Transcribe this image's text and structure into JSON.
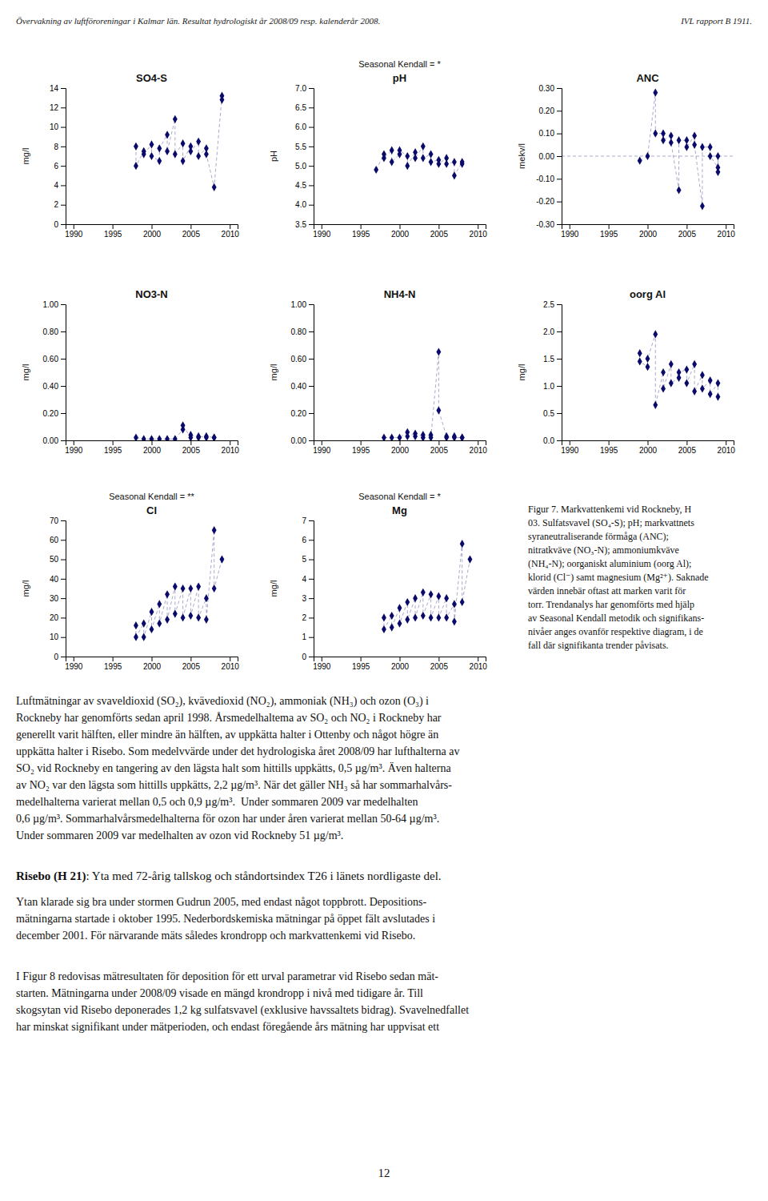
{
  "header_left": "Övervakning av luftföroreningar i Kalmar län. Resultat hydrologiskt år 2008/09 resp. kalenderår 2008.",
  "header_right": "IVL rapport B 1911.",
  "chart_data": [
    {
      "type": "line",
      "marker": "diamond",
      "line_style": "dashed",
      "color": "#0a0a6a",
      "title": "SO4-S",
      "ylabel": "mg/l",
      "xlim": [
        1989,
        2011
      ],
      "xticks": [
        1990,
        1995,
        2000,
        2005,
        2010
      ],
      "ylim": [
        0,
        14
      ],
      "yticks": [
        0,
        2,
        4,
        6,
        8,
        10,
        12,
        14
      ],
      "x": [
        1998,
        1998,
        1999,
        1999,
        2000,
        2000,
        2001,
        2001,
        2002,
        2002,
        2003,
        2003,
        2004,
        2004,
        2005,
        2005,
        2006,
        2006,
        2007,
        2007,
        2008,
        2009,
        2009
      ],
      "values": [
        8.0,
        6.0,
        7.5,
        7.2,
        8.2,
        7.0,
        6.5,
        7.8,
        9.2,
        7.5,
        10.8,
        7.2,
        8.3,
        6.5,
        8.0,
        7.5,
        8.5,
        7.0,
        7.8,
        7.2,
        3.8,
        13.2,
        12.8
      ]
    },
    {
      "type": "line",
      "marker": "diamond",
      "line_style": "dashed",
      "color": "#0a0a6a",
      "title": "pH",
      "subtitle": "Seasonal Kendall = *",
      "ylabel": "pH",
      "xlim": [
        1989,
        2011
      ],
      "xticks": [
        1990,
        1995,
        2000,
        2005,
        2010
      ],
      "ylim": [
        3.5,
        7.0
      ],
      "yticks": [
        3.5,
        {
          "value": 4.0,
          "label": "4.0"
        },
        4.5,
        {
          "value": 5.0,
          "label": "5.0"
        },
        5.5,
        {
          "value": 6.0,
          "label": "6.0"
        },
        6.5,
        {
          "value": 7.0,
          "label": "7.0"
        }
      ],
      "x": [
        1997,
        1998,
        1998,
        1999,
        1999,
        2000,
        2000,
        2001,
        2001,
        2002,
        2002,
        2003,
        2003,
        2004,
        2004,
        2005,
        2005,
        2006,
        2006,
        2007,
        2007,
        2008,
        2008
      ],
      "values": [
        4.9,
        5.3,
        5.2,
        5.4,
        5.1,
        5.3,
        5.4,
        5.25,
        5.0,
        5.35,
        5.2,
        5.5,
        5.2,
        5.3,
        5.1,
        5.15,
        5.05,
        5.2,
        5.05,
        5.1,
        4.75,
        5.1,
        5.05
      ]
    },
    {
      "type": "line",
      "marker": "diamond",
      "line_style": "dashed",
      "color": "#0a0a6a",
      "title": "ANC",
      "ylabel": "mekv/l",
      "hline": 0.0,
      "xlim": [
        1989,
        2011
      ],
      "xticks": [
        1990,
        1995,
        2000,
        2005,
        2010
      ],
      "ylim": [
        -0.3,
        0.3
      ],
      "yticks": [
        {
          "value": -0.3,
          "label": "-0.30"
        },
        {
          "value": -0.2,
          "label": "-0.20"
        },
        {
          "value": -0.1,
          "label": "-0.10"
        },
        {
          "value": 0.0,
          "label": "0.00"
        },
        {
          "value": 0.1,
          "label": "0.10"
        },
        {
          "value": 0.2,
          "label": "0.20"
        },
        {
          "value": 0.3,
          "label": "0.30"
        }
      ],
      "x": [
        1999,
        2000,
        2001,
        2001,
        2002,
        2002,
        2003,
        2003,
        2004,
        2004,
        2005,
        2005,
        2006,
        2006,
        2007,
        2007,
        2008,
        2008,
        2009,
        2009,
        2009
      ],
      "values": [
        -0.02,
        0.0,
        0.28,
        0.1,
        0.1,
        0.07,
        0.09,
        0.06,
        -0.15,
        0.07,
        0.07,
        0.04,
        0.09,
        0.05,
        -0.22,
        0.04,
        0.04,
        0.0,
        -0.05,
        0.0,
        -0.07
      ]
    },
    {
      "type": "line",
      "marker": "diamond",
      "line_style": "dashed",
      "color": "#0a0a6a",
      "title": "NO3-N",
      "ylabel": "mg/l",
      "xlim": [
        1989,
        2011
      ],
      "xticks": [
        1990,
        1995,
        2000,
        2005,
        2010
      ],
      "ylim": [
        0.0,
        1.0
      ],
      "yticks": [
        {
          "value": 0.0,
          "label": "0.00"
        },
        {
          "value": 0.2,
          "label": "0.20"
        },
        {
          "value": 0.4,
          "label": "0.40"
        },
        {
          "value": 0.6,
          "label": "0.60"
        },
        {
          "value": 0.8,
          "label": "0.80"
        },
        {
          "value": 1.0,
          "label": "1.00"
        }
      ],
      "x": [
        1998,
        1999,
        2000,
        2001,
        2002,
        2003,
        2004,
        2004,
        2005,
        2005,
        2006,
        2006,
        2007,
        2007,
        2008,
        2008
      ],
      "values": [
        0.02,
        0.01,
        0.01,
        0.01,
        0.01,
        0.01,
        0.08,
        0.11,
        0.02,
        0.04,
        0.02,
        0.03,
        0.02,
        0.03,
        0.02,
        0.02
      ]
    },
    {
      "type": "line",
      "marker": "diamond",
      "line_style": "dashed",
      "color": "#0a0a6a",
      "title": "NH4-N",
      "ylabel": "mg/l",
      "xlim": [
        1989,
        2011
      ],
      "xticks": [
        1990,
        1995,
        2000,
        2005,
        2010
      ],
      "ylim": [
        0.0,
        1.0
      ],
      "yticks": [
        {
          "value": 0.0,
          "label": "0.00"
        },
        {
          "value": 0.2,
          "label": "0.20"
        },
        {
          "value": 0.4,
          "label": "0.40"
        },
        {
          "value": 0.6,
          "label": "0.60"
        },
        {
          "value": 0.8,
          "label": "0.80"
        },
        {
          "value": 1.0,
          "label": "1.00"
        }
      ],
      "x": [
        1998,
        1999,
        2000,
        2001,
        2001,
        2002,
        2002,
        2003,
        2003,
        2004,
        2004,
        2005,
        2005,
        2006,
        2006,
        2007,
        2007,
        2008,
        2008
      ],
      "values": [
        0.02,
        0.02,
        0.02,
        0.06,
        0.03,
        0.05,
        0.03,
        0.04,
        0.02,
        0.04,
        0.02,
        0.65,
        0.22,
        0.03,
        0.02,
        0.03,
        0.02,
        0.02,
        0.02
      ]
    },
    {
      "type": "line",
      "marker": "diamond",
      "line_style": "dashed",
      "color": "#0a0a6a",
      "title": "oorg Al",
      "ylabel": "mg/l",
      "xlim": [
        1989,
        2011
      ],
      "xticks": [
        1990,
        1995,
        2000,
        2005,
        2010
      ],
      "ylim": [
        0.0,
        2.5
      ],
      "yticks": [
        {
          "value": 0.0,
          "label": "0.0"
        },
        0.5,
        {
          "value": 1.0,
          "label": "1.0"
        },
        1.5,
        {
          "value": 2.0,
          "label": "2.0"
        },
        2.5
      ],
      "x": [
        1999,
        1999,
        2000,
        2000,
        2001,
        2001,
        2002,
        2002,
        2003,
        2003,
        2004,
        2004,
        2005,
        2005,
        2006,
        2006,
        2007,
        2007,
        2008,
        2008,
        2009,
        2009
      ],
      "values": [
        1.6,
        1.45,
        1.35,
        1.5,
        1.95,
        0.65,
        1.25,
        0.95,
        1.4,
        1.05,
        1.15,
        1.25,
        1.3,
        1.05,
        1.4,
        0.9,
        1.2,
        0.95,
        1.1,
        0.85,
        1.05,
        0.8
      ]
    },
    {
      "type": "line",
      "marker": "diamond",
      "line_style": "dashed",
      "color": "#0a0a6a",
      "title": "Cl",
      "subtitle": "Seasonal Kendall = **",
      "ylabel": "mg/l",
      "xlim": [
        1989,
        2011
      ],
      "xticks": [
        1990,
        1995,
        2000,
        2005,
        2010
      ],
      "ylim": [
        0,
        70
      ],
      "yticks": [
        0,
        10,
        20,
        30,
        40,
        50,
        60,
        70
      ],
      "x": [
        1998,
        1998,
        1999,
        1999,
        2000,
        2000,
        2001,
        2001,
        2002,
        2002,
        2003,
        2003,
        2004,
        2004,
        2005,
        2005,
        2006,
        2006,
        2007,
        2007,
        2008,
        2008,
        2009
      ],
      "values": [
        16,
        10,
        17,
        10,
        23,
        14,
        27,
        17,
        32,
        19,
        36,
        22,
        35,
        20,
        35,
        21,
        36,
        20,
        30,
        19,
        65,
        35,
        50
      ]
    },
    {
      "type": "line",
      "marker": "diamond",
      "line_style": "dashed",
      "color": "#0a0a6a",
      "title": "Mg",
      "subtitle": "Seasonal Kendall = *",
      "ylabel": "mg/l",
      "xlim": [
        1989,
        2011
      ],
      "xticks": [
        1990,
        1995,
        2000,
        2005,
        2010
      ],
      "ylim": [
        0,
        7
      ],
      "yticks": [
        0,
        1,
        2,
        3,
        4,
        5,
        6,
        7
      ],
      "x": [
        1998,
        1998,
        1999,
        1999,
        2000,
        2000,
        2001,
        2001,
        2002,
        2002,
        2003,
        2003,
        2004,
        2004,
        2005,
        2005,
        2006,
        2006,
        2007,
        2007,
        2008,
        2008,
        2009
      ],
      "values": [
        2.0,
        1.4,
        2.1,
        1.5,
        2.5,
        1.7,
        2.8,
        1.9,
        3.0,
        2.0,
        3.3,
        2.1,
        3.2,
        2.0,
        3.1,
        2.0,
        3.0,
        2.0,
        2.7,
        1.8,
        5.8,
        2.8,
        5.0
      ]
    }
  ],
  "figure_caption": [
    "Figur 7. Markvattenkemi vid Rockneby, H",
    "03. Sulfatsvavel (SO₄-S); pH; markvattnets",
    "syraneutraliserande förmåga (ANC);",
    "nitratkväve (NO₃-N); ammoniumkväve",
    "(NH₄-N); oorganiskt aluminium (oorg Al);",
    "klorid (Cl⁻) samt magnesium (Mg²⁺). Saknade",
    "värden innebär oftast att marken varit för",
    "torr. Trendanalys har genomförts med hjälp",
    "av Seasonal Kendall metodik och signifikans-",
    "nivåer anges ovanför respektive diagram, i de",
    "fall där signifikanta trender påvisats."
  ],
  "body_para1": [
    "Luftmätningar av svaveldioxid (SO₂), kvävedioxid (NO₂), ammoniak (NH₃) och ozon (O₃) i",
    "Rockneby har genomförts sedan april 1998. Årsmedelhaltema av SO₂ och NO₂ i Rockneby har",
    "generellt varit hälften, eller mindre än hälften, av uppkätta halter i Ottenby och något högre än",
    "uppkätta halter i Risebo. Som medelvvärde under det hydrologiska året 2008/09 har lufthalterna av",
    "SO₂ vid Rockneby en tangering av den lägsta halt som hittills uppkätts, 0,5 µg/m³. Även halterna",
    "av NO₂ var den lägsta som hittills uppkätts, 2,2 µg/m³. När det gäller NH₃ så har sommarhalvårs-",
    "medelhalterna varierat mellan 0,5 och 0,9 µg/m³.  Under sommaren 2009 var medelhalten",
    "0,6 µg/m³. Sommarhalvårsmedelhalterna för ozon har under åren varierat mellan 50-64 µg/m³.",
    "Under sommaren 2009 var medelhalten av ozon vid Rockneby 51 µg/m³."
  ],
  "heading_bold": "Risebo (H 21)",
  "heading_rest": ": Yta med 72-årig tallskog och ståndortsindex T26 i länets nordligaste del.",
  "body_para2": [
    "Ytan klarade sig bra under stormen Gudrun 2005, med endast något toppbrott. Depositions-",
    "mätningarna startade i oktober 1995. Nederbordskemiska mätningar på öppet fält avslutades i",
    "december 2001. För närvarande mäts således krondropp och markvattenkemi vid Risebo."
  ],
  "body_para3": [
    "I Figur 8 redovisas mätresultaten för deposition för ett urval parametrar vid Risebo sedan mät-",
    "starten. Mätningarna under 2008/09 visade en mängd krondropp i nivå med tidigare år. Till",
    "skogsytan vid Risebo deponerades 1,2 kg sulfatsvavel (exklusive havssaltets bidrag). Svavelnedfallet",
    "har minskat signifikant under mätperioden, och endast föregående års mätning har uppvisat ett"
  ],
  "page_number": "12"
}
